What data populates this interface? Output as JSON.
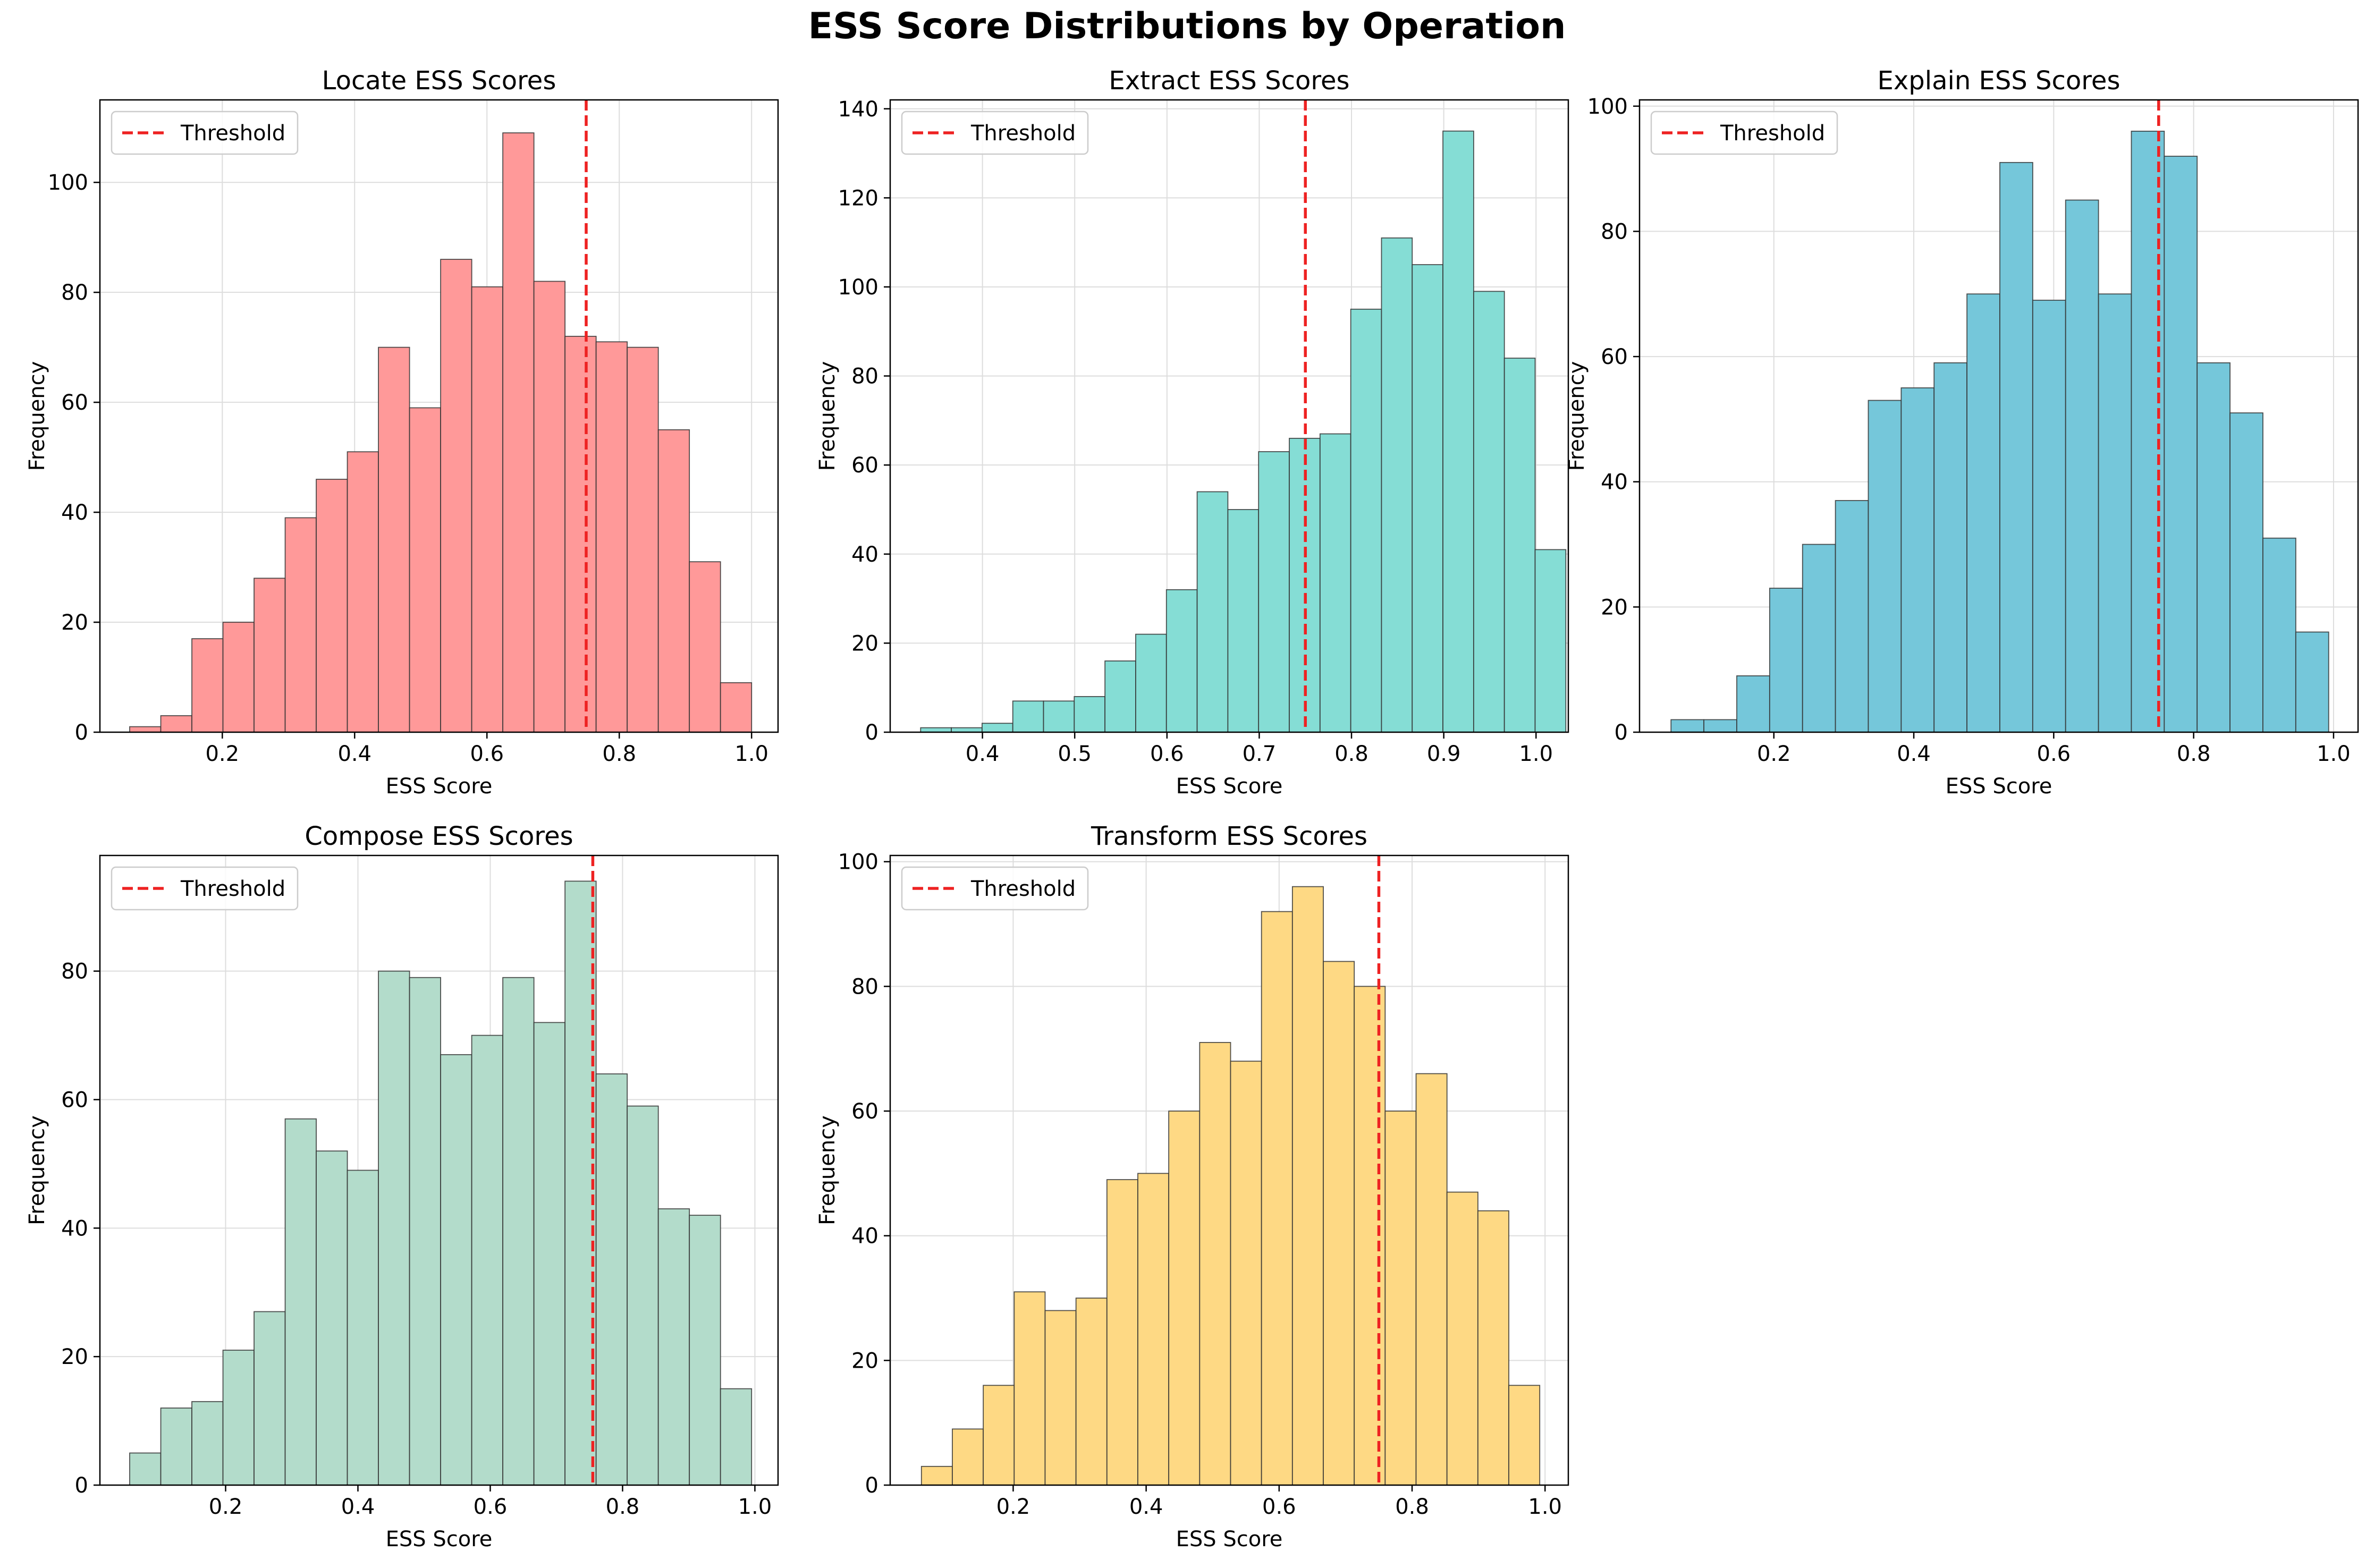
{
  "figure": {
    "title": "ESS Score Distributions by Operation"
  },
  "colors": {
    "threshold": "#ee2222",
    "bar_edge": "#333333",
    "grid": "#dddddd"
  },
  "chart_data": [
    {
      "type": "bar",
      "title": "Locate ESS Scores",
      "xlabel": "ESS Score",
      "ylabel": "Frequency",
      "color": "#ff9999",
      "threshold": 0.75,
      "legend": {
        "label": "Threshold",
        "position": "top-left"
      },
      "bin_start": 0.06,
      "bin_width": 0.047,
      "values": [
        1,
        3,
        17,
        20,
        28,
        39,
        46,
        51,
        70,
        59,
        86,
        81,
        109,
        82,
        72,
        71,
        70,
        55,
        31,
        9
      ],
      "xlim": [
        0.015,
        1.04
      ],
      "ylim": [
        0,
        115
      ],
      "xticks": [
        0.2,
        0.4,
        0.6,
        0.8,
        1.0
      ],
      "xtick_labels": [
        "0.2",
        "0.4",
        "0.6",
        "0.8",
        "1.0"
      ],
      "yticks": [
        0,
        20,
        40,
        60,
        80,
        100
      ],
      "grid": true
    },
    {
      "type": "bar",
      "title": "Extract ESS Scores",
      "xlabel": "ESS Score",
      "ylabel": "Frequency",
      "color": "#85ddd5",
      "threshold": 0.75,
      "legend": {
        "label": "Threshold",
        "position": "top-left"
      },
      "bin_start": 0.333,
      "bin_width": 0.0333,
      "values": [
        1,
        1,
        2,
        7,
        7,
        8,
        16,
        22,
        32,
        54,
        50,
        63,
        66,
        67,
        95,
        111,
        105,
        135,
        99,
        84,
        41
      ],
      "xlim": [
        0.3,
        1.035
      ],
      "ylim": [
        0,
        142
      ],
      "xticks": [
        0.4,
        0.5,
        0.6,
        0.7,
        0.8,
        0.9,
        1.0
      ],
      "xtick_labels": [
        "0.4",
        "0.5",
        "0.6",
        "0.7",
        "0.8",
        "0.9",
        "1.0"
      ],
      "yticks": [
        0,
        20,
        40,
        60,
        80,
        100,
        120,
        140
      ],
      "grid": true
    },
    {
      "type": "bar",
      "title": "Explain ESS Scores",
      "xlabel": "ESS Score",
      "ylabel": "Frequency",
      "color": "#75c7da",
      "threshold": 0.75,
      "legend": {
        "label": "Threshold",
        "position": "top-left"
      },
      "bin_start": 0.053,
      "bin_width": 0.047,
      "values": [
        2,
        2,
        9,
        23,
        30,
        37,
        53,
        55,
        59,
        70,
        91,
        69,
        85,
        70,
        96,
        92,
        59,
        51,
        31,
        16
      ],
      "xlim": [
        0.008,
        1.035
      ],
      "ylim": [
        0,
        101
      ],
      "xticks": [
        0.2,
        0.4,
        0.6,
        0.8,
        1.0
      ],
      "xtick_labels": [
        "0.2",
        "0.4",
        "0.6",
        "0.8",
        "1.0"
      ],
      "yticks": [
        0,
        20,
        40,
        60,
        80,
        100
      ],
      "grid": true
    },
    {
      "type": "bar",
      "title": "Compose ESS Scores",
      "xlabel": "ESS Score",
      "ylabel": "Frequency",
      "color": "#b3dccb",
      "threshold": 0.755,
      "legend": {
        "label": "Threshold",
        "position": "top-left"
      },
      "bin_start": 0.055,
      "bin_width": 0.047,
      "values": [
        5,
        12,
        13,
        21,
        27,
        57,
        52,
        49,
        80,
        79,
        67,
        70,
        79,
        72,
        94,
        64,
        59,
        43,
        42,
        15
      ],
      "xlim": [
        0.01,
        1.035
      ],
      "ylim": [
        0,
        98
      ],
      "xticks": [
        0.2,
        0.4,
        0.6,
        0.8,
        1.0
      ],
      "xtick_labels": [
        "0.2",
        "0.4",
        "0.6",
        "0.8",
        "1.0"
      ],
      "yticks": [
        0,
        20,
        40,
        60,
        80
      ],
      "grid": true
    },
    {
      "type": "bar",
      "title": "Transform ESS Scores",
      "xlabel": "ESS Score",
      "ylabel": "Frequency",
      "color": "#fed984",
      "threshold": 0.75,
      "legend": {
        "label": "Threshold",
        "position": "top-left"
      },
      "bin_start": 0.062,
      "bin_width": 0.0465,
      "values": [
        3,
        9,
        16,
        31,
        28,
        30,
        49,
        50,
        60,
        71,
        68,
        92,
        96,
        84,
        80,
        60,
        66,
        47,
        44,
        16
      ],
      "xlim": [
        0.015,
        1.035
      ],
      "ylim": [
        0,
        101
      ],
      "xticks": [
        0.2,
        0.4,
        0.6,
        0.8,
        1.0
      ],
      "xtick_labels": [
        "0.2",
        "0.4",
        "0.6",
        "0.8",
        "1.0"
      ],
      "yticks": [
        0,
        20,
        40,
        60,
        80,
        100
      ],
      "grid": true
    }
  ]
}
